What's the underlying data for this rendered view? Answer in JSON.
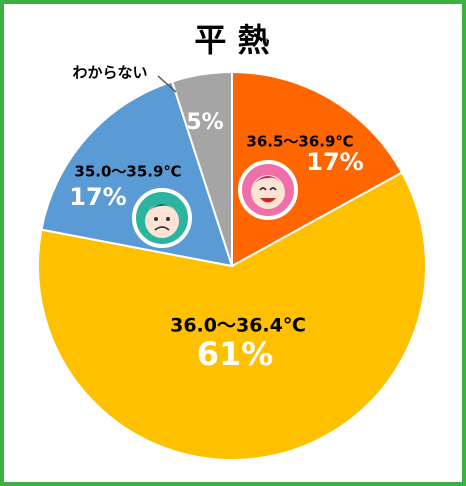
{
  "chart_data": {
    "type": "pie",
    "title": "平 熱",
    "categories": [
      "36.5～36.9℃",
      "36.0～36.4℃",
      "35.0～35.9℃",
      "わからない"
    ],
    "values": [
      17,
      61,
      17,
      5
    ],
    "value_labels": [
      "17%",
      "61%",
      "17%",
      "5%"
    ],
    "colors": [
      "#ff6600",
      "#ffc000",
      "#5b9bd5",
      "#a5a5a5"
    ]
  }
}
